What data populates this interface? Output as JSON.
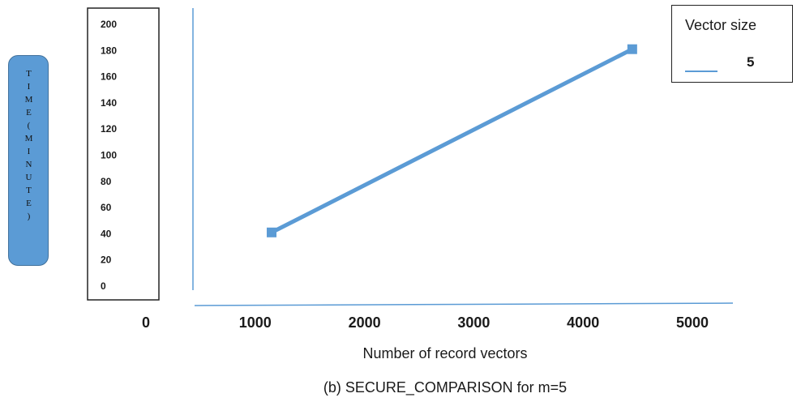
{
  "chart_data": {
    "type": "line",
    "title": "",
    "caption": "(b) SECURE_COMPARISON for m=5",
    "xlabel": "Number of record vectors",
    "ylabel": "TIME(MINUTE)",
    "x_ticks": [
      "0",
      "1000",
      "2000",
      "3000",
      "4000",
      "5000"
    ],
    "y_ticks": [
      "0",
      "20",
      "40",
      "60",
      "80",
      "100",
      "120",
      "140",
      "160",
      "180",
      "200"
    ],
    "xlim": [
      0,
      5000
    ],
    "ylim": [
      0,
      200
    ],
    "grid": false,
    "legend": {
      "title": "Vector size",
      "position": "top-right"
    },
    "series": [
      {
        "name": "5",
        "color": "#5b9bd5",
        "x": [
          1150,
          4450
        ],
        "y": [
          41,
          181
        ]
      }
    ]
  }
}
